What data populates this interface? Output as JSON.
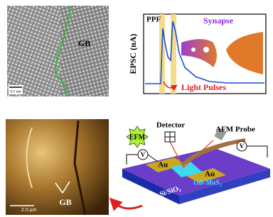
{
  "panels": {
    "hrtem": {
      "label": "GB",
      "scale_bar": "0.5 nm"
    },
    "epsc": {
      "tag": "PPF",
      "synapse": "Synapse",
      "y_axis": "EPSC (nA)",
      "annotation": "Light Pulses"
    },
    "efm_image": {
      "scale_bar": "2.0 µm",
      "label": "GB"
    },
    "schematic": {
      "mode": "EFM",
      "detector": "Detector",
      "probe": "AFM Probe",
      "voltmeters": [
        "V",
        "V"
      ],
      "electrodes": [
        "Au",
        "Au"
      ],
      "channel": "GB-MoS₂",
      "substrate": "Si/SiO₂"
    }
  }
}
